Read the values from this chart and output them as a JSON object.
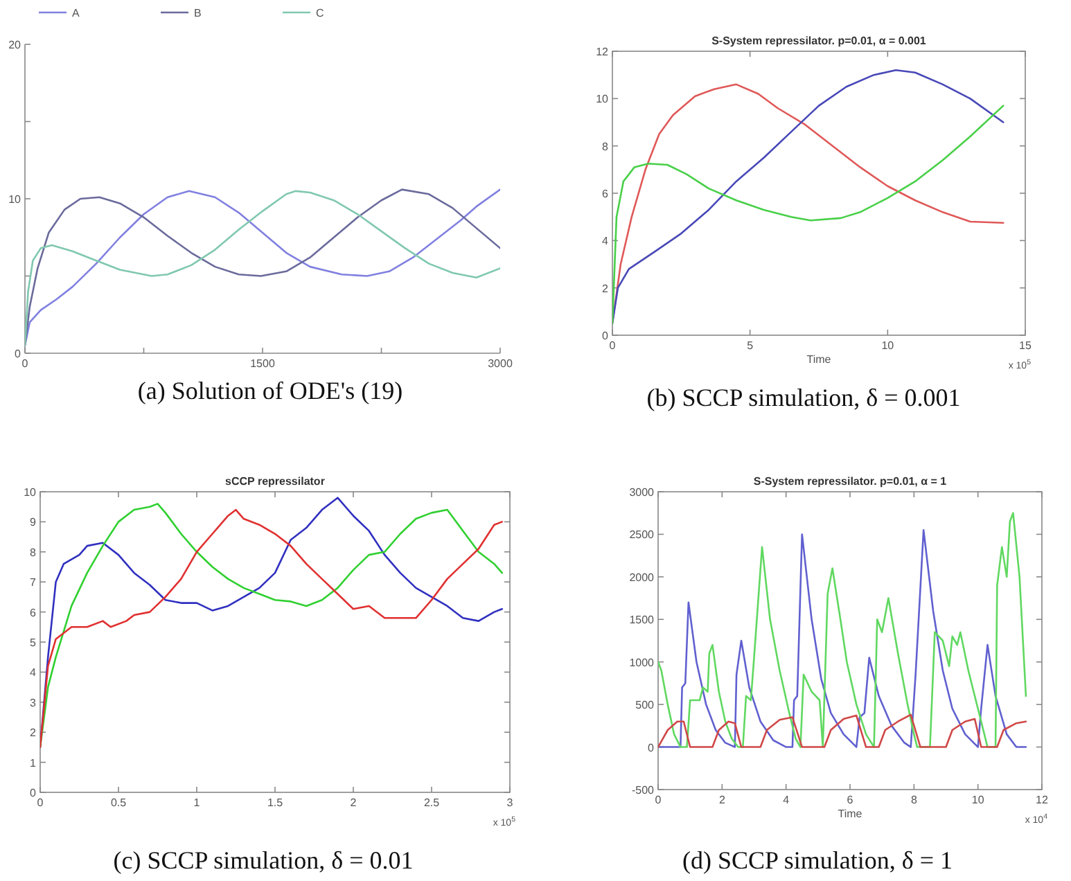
{
  "chart_data": [
    {
      "type": "line",
      "legend": "top",
      "xlim": [
        0,
        3000
      ],
      "ylim": [
        0,
        20
      ],
      "xticks": [
        0,
        {
          "value": 750,
          "label": null
        },
        1500,
        {
          "value": 2250,
          "label": null
        },
        3000
      ],
      "yticks": [
        0,
        {
          "value": 5,
          "label": null
        },
        10,
        {
          "value": 15,
          "label": null
        },
        20
      ],
      "annotations": [
        "(a) Solution of ODE's (19)"
      ],
      "series": [
        {
          "name": "A",
          "color": "#8080e0",
          "x": [
            0,
            30,
            100,
            200,
            300,
            450,
            600,
            750,
            900,
            1036,
            1200,
            1350,
            1500,
            1650,
            1800,
            2000,
            2160,
            2300,
            2450,
            2600,
            2750,
            2850,
            3000
          ],
          "values": [
            0.5,
            2,
            2.8,
            3.5,
            4.3,
            5.8,
            7.5,
            9,
            10.1,
            10.5,
            10.1,
            9.1,
            7.8,
            6.5,
            5.6,
            5.1,
            5.0,
            5.3,
            6.2,
            7.4,
            8.6,
            9.5,
            10.6
          ]
        },
        {
          "name": "B",
          "color": "#6a6a9c",
          "x": [
            0,
            30,
            80,
            150,
            250,
            350,
            470,
            600,
            750,
            900,
            1050,
            1200,
            1350,
            1490,
            1650,
            1800,
            1950,
            2100,
            2250,
            2380,
            2550,
            2700,
            2850,
            3000
          ],
          "values": [
            0.5,
            3,
            5.5,
            7.8,
            9.3,
            10,
            10.1,
            9.7,
            8.8,
            7.6,
            6.5,
            5.6,
            5.1,
            5.0,
            5.3,
            6.2,
            7.5,
            8.8,
            9.9,
            10.6,
            10.3,
            9.4,
            8.1,
            6.8
          ]
        },
        {
          "name": "C",
          "color": "#80c8b0",
          "x": [
            0,
            20,
            50,
            100,
            170,
            300,
            450,
            600,
            800,
            900,
            1050,
            1200,
            1350,
            1500,
            1650,
            1710,
            1800,
            1950,
            2100,
            2250,
            2400,
            2550,
            2700,
            2850,
            3000
          ],
          "values": [
            0.5,
            4,
            6,
            6.8,
            7.0,
            6.6,
            6.0,
            5.4,
            5.0,
            5.1,
            5.7,
            6.7,
            8.0,
            9.2,
            10.3,
            10.5,
            10.4,
            9.9,
            9.0,
            7.9,
            6.8,
            5.8,
            5.2,
            4.9,
            5.5
          ]
        }
      ]
    },
    {
      "type": "line",
      "title": "S-System repressilator. p=0.01, α = 0.001",
      "xlabel": "Time",
      "xlim": [
        0,
        15
      ],
      "ylim": [
        0,
        12
      ],
      "xticks": [
        0,
        5,
        10,
        15
      ],
      "yticks": [
        0,
        2,
        4,
        6,
        8,
        10,
        12
      ],
      "annotations": [
        "x 10$^{5}$",
        "(b) SCCP simulation, δ = 0.001"
      ],
      "series": [
        {
          "color": "#e05858",
          "x": [
            0,
            0.3,
            0.7,
            1.2,
            1.7,
            2.2,
            3,
            3.7,
            4.5,
            5.3,
            6,
            7,
            8,
            9,
            10,
            11,
            12,
            13,
            14.2
          ],
          "values": [
            0.5,
            3,
            5,
            7,
            8.5,
            9.3,
            10.1,
            10.4,
            10.6,
            10.2,
            9.6,
            8.9,
            8.0,
            7.1,
            6.3,
            5.7,
            5.2,
            4.8,
            4.75
          ]
        },
        {
          "color": "#4848b8",
          "x": [
            0,
            0.2,
            0.6,
            1.5,
            2.5,
            3.5,
            4.5,
            5.5,
            6.5,
            7.5,
            8.5,
            9.5,
            10.3,
            11,
            12,
            13,
            14.2
          ],
          "values": [
            0.5,
            2,
            2.8,
            3.5,
            4.3,
            5.3,
            6.5,
            7.5,
            8.6,
            9.7,
            10.5,
            11.0,
            11.2,
            11.1,
            10.6,
            10.0,
            9.0
          ]
        },
        {
          "color": "#48d048",
          "x": [
            0,
            0.15,
            0.4,
            0.8,
            1.3,
            2,
            2.7,
            3.5,
            4.5,
            5.5,
            6.5,
            7.2,
            8.3,
            9,
            10,
            11,
            12,
            13,
            14.2
          ],
          "values": [
            0.5,
            5,
            6.5,
            7.1,
            7.25,
            7.2,
            6.8,
            6.2,
            5.7,
            5.3,
            5.0,
            4.85,
            4.95,
            5.2,
            5.8,
            6.5,
            7.4,
            8.4,
            9.7
          ]
        }
      ]
    },
    {
      "type": "line",
      "title": "sCCP repressilator",
      "xlim": [
        0,
        3
      ],
      "ylim": [
        0,
        10
      ],
      "xticks": [
        0,
        0.5,
        1,
        1.5,
        2,
        2.5,
        3
      ],
      "yticks": [
        0,
        1,
        2,
        3,
        4,
        5,
        6,
        7,
        8,
        9,
        10
      ],
      "annotations": [
        "x 10$^{5}$",
        "(c) SCCP simulation, δ = 0.01"
      ],
      "series": [
        {
          "color": "#3030c0",
          "x": [
            0,
            0.05,
            0.1,
            0.15,
            0.25,
            0.3,
            0.4,
            0.5,
            0.6,
            0.7,
            0.8,
            0.9,
            1.0,
            1.1,
            1.2,
            1.3,
            1.4,
            1.5,
            1.6,
            1.7,
            1.8,
            1.9,
            2.0,
            2.1,
            2.2,
            2.3,
            2.4,
            2.5,
            2.6,
            2.7,
            2.8,
            2.9,
            2.95
          ],
          "values": [
            1.5,
            4.5,
            7,
            7.6,
            7.9,
            8.2,
            8.3,
            7.9,
            7.3,
            6.9,
            6.4,
            6.3,
            6.3,
            6.05,
            6.2,
            6.5,
            6.8,
            7.3,
            8.4,
            8.8,
            9.4,
            9.8,
            9.2,
            8.7,
            7.9,
            7.3,
            6.8,
            6.5,
            6.2,
            5.8,
            5.7,
            6.0,
            6.1
          ]
        },
        {
          "color": "#30d030",
          "x": [
            0,
            0.05,
            0.1,
            0.2,
            0.3,
            0.4,
            0.5,
            0.6,
            0.7,
            0.75,
            0.8,
            0.9,
            1.0,
            1.1,
            1.2,
            1.3,
            1.4,
            1.5,
            1.6,
            1.7,
            1.8,
            1.9,
            2.0,
            2.1,
            2.2,
            2.3,
            2.4,
            2.5,
            2.6,
            2.7,
            2.8,
            2.9,
            2.95
          ],
          "values": [
            1.5,
            3.5,
            4.5,
            6.2,
            7.3,
            8.2,
            9.0,
            9.4,
            9.5,
            9.6,
            9.3,
            8.6,
            8.0,
            7.5,
            7.1,
            6.8,
            6.6,
            6.4,
            6.35,
            6.2,
            6.4,
            6.8,
            7.4,
            7.9,
            8.0,
            8.6,
            9.1,
            9.3,
            9.4,
            8.7,
            8.0,
            7.6,
            7.3
          ]
        },
        {
          "color": "#e03030",
          "x": [
            0,
            0.05,
            0.1,
            0.2,
            0.3,
            0.4,
            0.45,
            0.55,
            0.6,
            0.7,
            0.8,
            0.9,
            1.0,
            1.1,
            1.2,
            1.25,
            1.3,
            1.4,
            1.5,
            1.6,
            1.7,
            1.8,
            1.9,
            2.0,
            2.1,
            2.2,
            2.3,
            2.4,
            2.5,
            2.6,
            2.7,
            2.8,
            2.9,
            2.95
          ],
          "values": [
            1.5,
            4.2,
            5.1,
            5.5,
            5.5,
            5.7,
            5.5,
            5.7,
            5.9,
            6.0,
            6.5,
            7.1,
            8.0,
            8.6,
            9.2,
            9.4,
            9.1,
            8.9,
            8.6,
            8.2,
            7.6,
            7.1,
            6.6,
            6.1,
            6.2,
            5.8,
            5.8,
            5.8,
            6.4,
            7.1,
            7.6,
            8.1,
            8.9,
            9.0
          ]
        }
      ]
    },
    {
      "type": "line",
      "title": "S-System repressilator. p=0.01, α = 1",
      "xlabel": "Time",
      "xlim": [
        0,
        12
      ],
      "ylim": [
        -500,
        3000
      ],
      "xticks": [
        0,
        2,
        4,
        6,
        8,
        10,
        12
      ],
      "yticks": [
        -500,
        0,
        500,
        1000,
        1500,
        2000,
        2500,
        3000
      ],
      "annotations": [
        "x 10$^{4}$",
        "(d) SCCP simulation, δ = 1"
      ],
      "series": [
        {
          "color": "#6060d0",
          "x": [
            0,
            0.7,
            0.75,
            0.85,
            0.95,
            1.2,
            1.5,
            1.8,
            2.1,
            2.4,
            2.45,
            2.6,
            2.85,
            3.2,
            3.6,
            4.0,
            4.2,
            4.25,
            4.35,
            4.5,
            4.8,
            5.1,
            5.4,
            5.8,
            6.2,
            6.3,
            6.45,
            6.6,
            6.9,
            7.3,
            7.7,
            7.9,
            8.05,
            8.3,
            8.6,
            8.9,
            9.2,
            9.6,
            10.0,
            10.1,
            10.3,
            10.55,
            10.9,
            11.2,
            11.5
          ],
          "values": [
            0,
            0,
            700,
            750,
            1700,
            1000,
            500,
            200,
            50,
            0,
            850,
            1250,
            700,
            300,
            80,
            0,
            0,
            550,
            600,
            2500,
            1500,
            800,
            400,
            150,
            0,
            350,
            400,
            1050,
            600,
            250,
            50,
            0,
            850,
            2550,
            1600,
            900,
            450,
            150,
            0,
            450,
            1200,
            600,
            150,
            0,
            0
          ]
        },
        {
          "color": "#60d860",
          "x": [
            0,
            0.1,
            0.3,
            0.5,
            0.7,
            0.9,
            1.0,
            1.3,
            1.4,
            1.55,
            1.6,
            1.7,
            1.9,
            2.1,
            2.3,
            2.5,
            2.65,
            2.75,
            2.9,
            3.0,
            3.25,
            3.5,
            3.8,
            4.1,
            4.3,
            4.45,
            4.55,
            4.8,
            5.05,
            5.15,
            5.3,
            5.45,
            5.7,
            5.9,
            6.2,
            6.5,
            6.75,
            6.85,
            7.0,
            7.2,
            7.5,
            7.8,
            8.0,
            8.1,
            8.5,
            8.65,
            8.9,
            9.1,
            9.2,
            9.35,
            9.45,
            9.7,
            10.0,
            10.2,
            10.3,
            10.55,
            10.6,
            10.75,
            10.9,
            11.0,
            11.1,
            11.3,
            11.5
          ],
          "values": [
            1000,
            900,
            500,
            150,
            0,
            0,
            550,
            550,
            700,
            650,
            1100,
            1200,
            650,
            300,
            100,
            0,
            0,
            600,
            550,
            1050,
            2350,
            1500,
            900,
            400,
            100,
            0,
            850,
            650,
            550,
            0,
            1800,
            2100,
            1500,
            1000,
            500,
            150,
            0,
            1500,
            1350,
            1750,
            1100,
            500,
            150,
            0,
            0,
            1350,
            1250,
            950,
            1300,
            1200,
            1350,
            900,
            450,
            150,
            0,
            0,
            1900,
            2350,
            2000,
            2650,
            2750,
            2000,
            600
          ]
        },
        {
          "color": "#d04848",
          "x": [
            0,
            0.3,
            0.6,
            0.8,
            1.0,
            1.7,
            1.9,
            2.2,
            2.4,
            2.6,
            3.2,
            3.4,
            3.8,
            4.2,
            4.5,
            5.2,
            5.4,
            5.8,
            6.2,
            6.5,
            6.9,
            7.1,
            7.5,
            7.9,
            8.2,
            9.0,
            9.2,
            9.6,
            9.9,
            10.1,
            10.6,
            10.8,
            11.2,
            11.5
          ],
          "values": [
            0,
            200,
            300,
            300,
            0,
            0,
            200,
            300,
            280,
            0,
            0,
            200,
            320,
            350,
            0,
            0,
            200,
            330,
            370,
            0,
            0,
            200,
            300,
            380,
            0,
            0,
            200,
            300,
            330,
            0,
            0,
            200,
            280,
            300
          ]
        }
      ]
    }
  ]
}
